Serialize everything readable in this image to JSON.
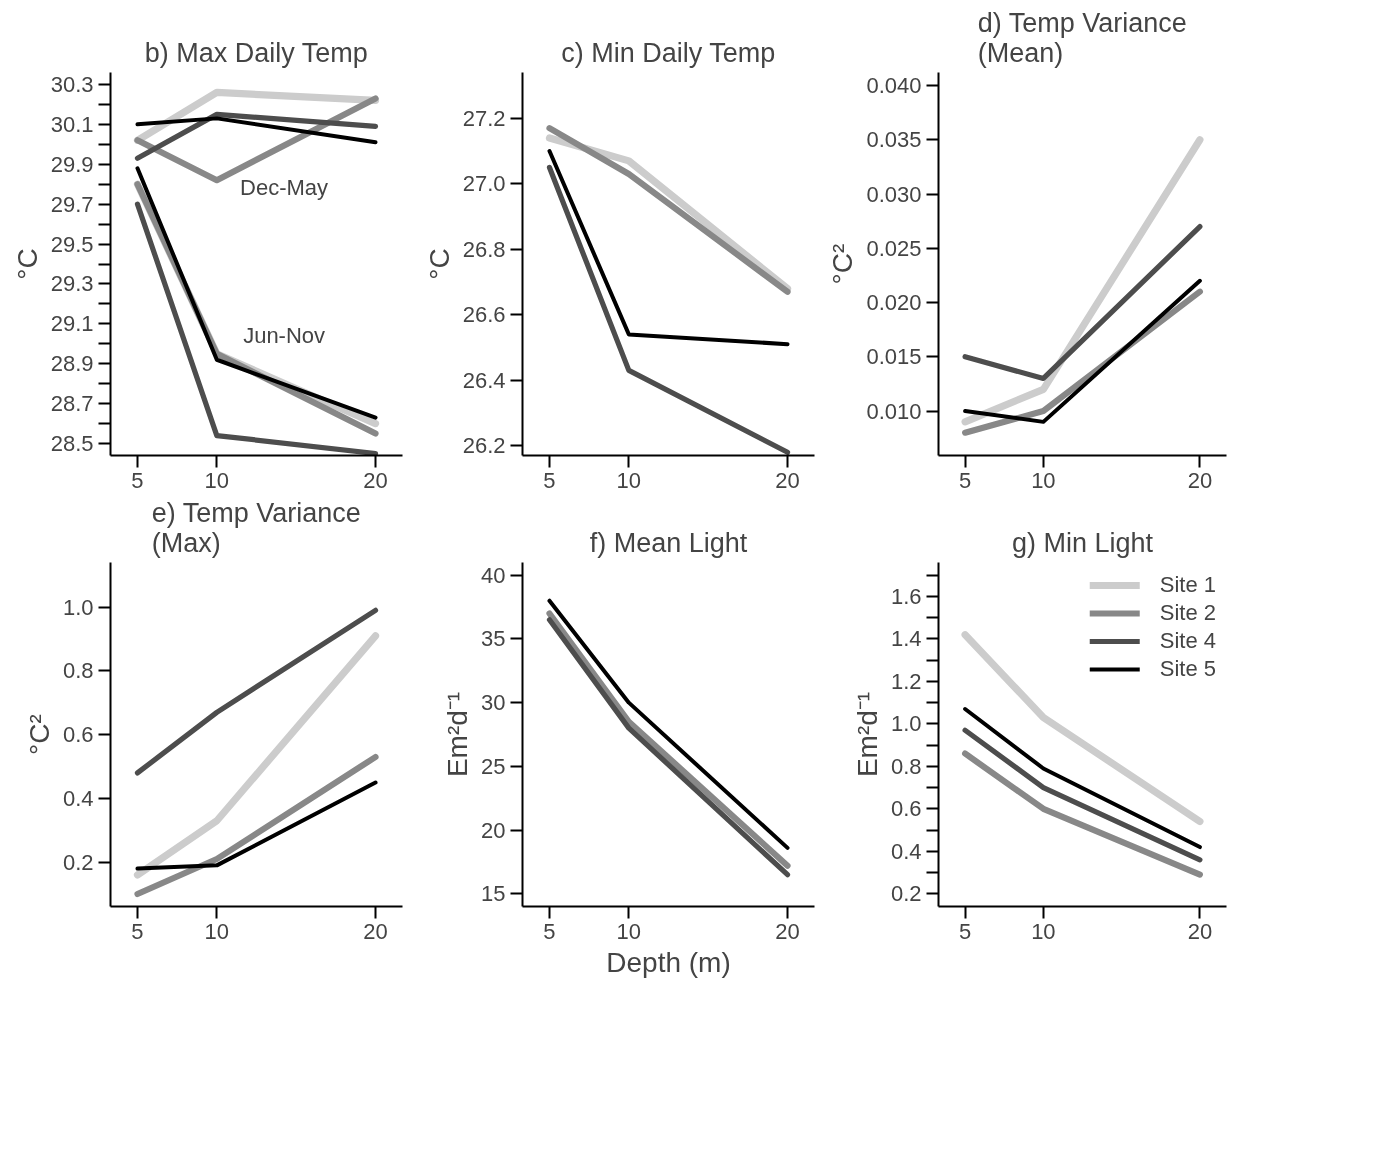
{
  "chart_data": [
    {
      "type": "line",
      "title": "b) Max Daily Temp",
      "ylabel": "°C",
      "x": [
        5,
        10,
        20
      ],
      "xlim": [
        3.3,
        21.7
      ],
      "xticks": [
        5,
        10,
        20
      ],
      "ylim": [
        28.44,
        30.36
      ],
      "yticks": [
        28.5,
        {
          "value": 28.6,
          "label": null
        },
        28.7,
        {
          "value": 28.8,
          "label": null
        },
        28.9,
        {
          "value": 29.0,
          "label": null
        },
        29.1,
        {
          "value": 29.2,
          "label": null
        },
        29.3,
        {
          "value": 29.4,
          "label": null
        },
        29.5,
        {
          "value": 29.6,
          "label": null
        },
        29.7,
        {
          "value": 29.8,
          "label": null
        },
        29.9,
        {
          "value": 30.0,
          "label": null
        },
        30.1,
        {
          "value": 30.2,
          "label": null
        },
        30.3
      ],
      "series": [
        {
          "color": "#cccccc",
          "values": [
            30.02,
            30.26,
            30.22
          ]
        },
        {
          "color": "#888888",
          "values": [
            30.02,
            29.82,
            30.23
          ]
        },
        {
          "color": "#4d4d4d",
          "values": [
            29.93,
            30.15,
            30.09
          ]
        },
        {
          "color": "#000000",
          "values": [
            30.1,
            30.13,
            30.01
          ]
        },
        {
          "color": "#cccccc",
          "values": [
            29.8,
            28.95,
            28.6
          ]
        },
        {
          "color": "#888888",
          "values": [
            29.8,
            28.95,
            28.55
          ]
        },
        {
          "color": "#4d4d4d",
          "values": [
            29.7,
            28.54,
            28.45
          ]
        },
        {
          "color": "#000000",
          "values": [
            29.88,
            28.92,
            28.63
          ]
        }
      ],
      "annotations": [
        "Dec-May",
        "Jun-Nov"
      ]
    },
    {
      "type": "line",
      "title": "c) Min Daily Temp",
      "ylabel": "°C",
      "x": [
        5,
        10,
        20
      ],
      "xlim": [
        3.3,
        21.7
      ],
      "xticks": [
        5,
        10,
        20
      ],
      "ylim": [
        26.17,
        27.34
      ],
      "yticks": [
        26.2,
        26.4,
        26.6,
        26.8,
        {
          "value": 27.0,
          "label": "27.0"
        },
        27.2
      ],
      "series": [
        {
          "color": "#cccccc",
          "values": [
            27.14,
            27.07,
            26.68
          ]
        },
        {
          "color": "#888888",
          "values": [
            27.17,
            27.03,
            26.67
          ]
        },
        {
          "color": "#4d4d4d",
          "values": [
            27.05,
            26.43,
            26.18
          ]
        },
        {
          "color": "#000000",
          "values": [
            27.1,
            26.54,
            26.51
          ]
        }
      ]
    },
    {
      "type": "line",
      "title": "d) Temp Variance\n(Mean)",
      "ylabel": "°C²",
      "x": [
        5,
        10,
        20
      ],
      "xlim": [
        3.3,
        21.7
      ],
      "xticks": [
        5,
        10,
        20
      ],
      "ylim": [
        0.0059,
        0.0412
      ],
      "yticks": [
        {
          "value": 0.01,
          "label": "0.010"
        },
        {
          "value": 0.015,
          "label": "0.015"
        },
        {
          "value": 0.02,
          "label": "0.020"
        },
        {
          "value": 0.025,
          "label": "0.025"
        },
        {
          "value": 0.03,
          "label": "0.030"
        },
        {
          "value": 0.035,
          "label": "0.035"
        },
        {
          "value": 0.04,
          "label": "0.040"
        }
      ],
      "series": [
        {
          "color": "#cccccc",
          "values": [
            0.009,
            0.012,
            0.035
          ]
        },
        {
          "color": "#888888",
          "values": [
            0.008,
            0.01,
            0.021
          ]
        },
        {
          "color": "#4d4d4d",
          "values": [
            0.015,
            0.013,
            0.027
          ]
        },
        {
          "color": "#000000",
          "values": [
            0.01,
            0.009,
            0.022
          ]
        }
      ]
    },
    {
      "type": "line",
      "title": "e) Temp Variance\n(Max)",
      "ylabel": "°C²",
      "x": [
        5,
        10,
        20
      ],
      "xlim": [
        3.3,
        21.7
      ],
      "xticks": [
        5,
        10,
        20
      ],
      "ylim": [
        0.061,
        1.14
      ],
      "yticks": [
        0.2,
        0.4,
        0.6,
        0.8,
        {
          "value": 1.0,
          "label": "1.0"
        }
      ],
      "series": [
        {
          "color": "#cccccc",
          "values": [
            0.16,
            0.33,
            0.91
          ]
        },
        {
          "color": "#888888",
          "values": [
            0.1,
            0.21,
            0.53
          ]
        },
        {
          "color": "#4d4d4d",
          "values": [
            0.48,
            0.67,
            0.99
          ]
        },
        {
          "color": "#000000",
          "values": [
            0.18,
            0.19,
            0.45
          ]
        }
      ]
    },
    {
      "type": "line",
      "title": "f) Mean Light",
      "ylabel": "Em²d⁻¹",
      "xlabel": "Depth (m)",
      "x": [
        5,
        10,
        20
      ],
      "xlim": [
        3.3,
        21.7
      ],
      "xticks": [
        5,
        10,
        20
      ],
      "ylim": [
        14.0,
        41.0
      ],
      "yticks": [
        15,
        20,
        25,
        30,
        35,
        40
      ],
      "series": [
        {
          "color": "#cccccc",
          "values": [
            null,
            null,
            null
          ]
        },
        {
          "color": "#888888",
          "values": [
            37.0,
            28.5,
            17.2
          ]
        },
        {
          "color": "#4d4d4d",
          "values": [
            36.5,
            28.0,
            16.5
          ]
        },
        {
          "color": "#000000",
          "values": [
            38.0,
            30.0,
            18.6
          ]
        }
      ]
    },
    {
      "type": "line",
      "title": "g) Min Light",
      "ylabel": "Em²d⁻¹",
      "x": [
        5,
        10,
        20
      ],
      "xlim": [
        3.3,
        21.7
      ],
      "xticks": [
        5,
        10,
        20
      ],
      "ylim": [
        0.14,
        1.76
      ],
      "legend": "top right",
      "yticks": [
        0.2,
        {
          "value": 0.3,
          "label": null
        },
        0.4,
        {
          "value": 0.5,
          "label": null
        },
        0.6,
        {
          "value": 0.7,
          "label": null
        },
        0.8,
        {
          "value": 0.9,
          "label": null
        },
        {
          "value": 1.0,
          "label": "1.0"
        },
        {
          "value": 1.1,
          "label": null
        },
        1.2,
        {
          "value": 1.3,
          "label": null
        },
        1.4,
        {
          "value": 1.5,
          "label": null
        },
        1.6,
        {
          "value": 1.7,
          "label": null
        }
      ],
      "series": [
        {
          "name": "Site 1",
          "color": "#cccccc",
          "values": [
            1.42,
            1.03,
            0.54
          ]
        },
        {
          "name": "Site 2",
          "color": "#888888",
          "values": [
            0.86,
            0.6,
            0.29
          ]
        },
        {
          "name": "Site 4",
          "color": "#4d4d4d",
          "values": [
            0.97,
            0.7,
            0.36
          ]
        },
        {
          "name": "Site 5",
          "color": "#000000",
          "values": [
            1.07,
            0.79,
            0.42
          ]
        }
      ]
    }
  ]
}
